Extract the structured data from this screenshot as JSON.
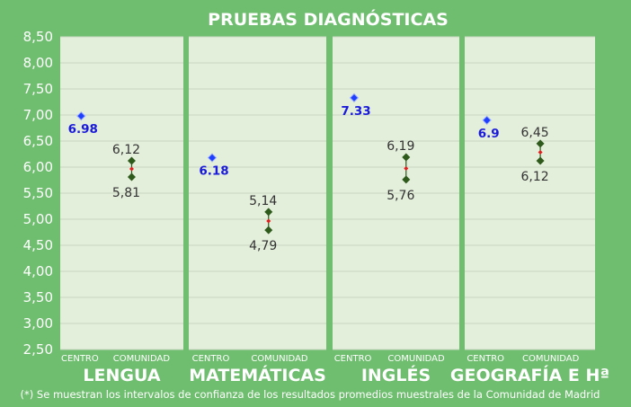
{
  "chart_data": {
    "type": "scatter",
    "title": "PRUEBAS DIAGNÓSTICAS",
    "ylim": [
      2.5,
      8.5
    ],
    "yticks": [
      "8,50",
      "8,00",
      "7,50",
      "7,00",
      "6,50",
      "6,00",
      "5,50",
      "5,00",
      "4,50",
      "4,00",
      "3,50",
      "3,00",
      "2,50"
    ],
    "ytick_values": [
      8.5,
      8.0,
      7.5,
      7.0,
      6.5,
      6.0,
      5.5,
      5.0,
      4.5,
      4.0,
      3.5,
      3.0,
      2.5
    ],
    "grid": true,
    "x_categories": [
      "CENTRO",
      "COMUNIDAD"
    ],
    "panels": [
      {
        "name": "LENGUA",
        "centro": {
          "value": 6.98,
          "label": "6.98"
        },
        "comunidad": {
          "upper": 6.12,
          "lower": 5.81,
          "mean": 5.965,
          "upper_label": "6,12",
          "lower_label": "5,81"
        }
      },
      {
        "name": "MATEMÁTICAS",
        "centro": {
          "value": 6.18,
          "label": "6.18"
        },
        "comunidad": {
          "upper": 5.14,
          "lower": 4.79,
          "mean": 4.965,
          "upper_label": "5,14",
          "lower_label": "4,79"
        }
      },
      {
        "name": "INGLÉS",
        "centro": {
          "value": 7.33,
          "label": "7.33"
        },
        "comunidad": {
          "upper": 6.19,
          "lower": 5.76,
          "mean": 5.975,
          "upper_label": "6,19",
          "lower_label": "5,76"
        }
      },
      {
        "name": "GEOGRAFÍA E Hª",
        "centro": {
          "value": 6.9,
          "label": "6.9"
        },
        "comunidad": {
          "upper": 6.45,
          "lower": 6.12,
          "mean": 6.285,
          "upper_label": "6,45",
          "lower_label": "6,12"
        }
      }
    ],
    "footnote": "(*) Se muestran los intervalos de confianza de los resultados promedios muestrales de la Comunidad de Madrid",
    "colors": {
      "background": "#6fbd6f",
      "panel": "#e3eedb",
      "grid": "#c9d6c1",
      "centro_marker": "#1f3fff",
      "interval_marker": "#2e5a1c",
      "mean_marker": "#e02020",
      "text_light": "#ffffff"
    }
  }
}
